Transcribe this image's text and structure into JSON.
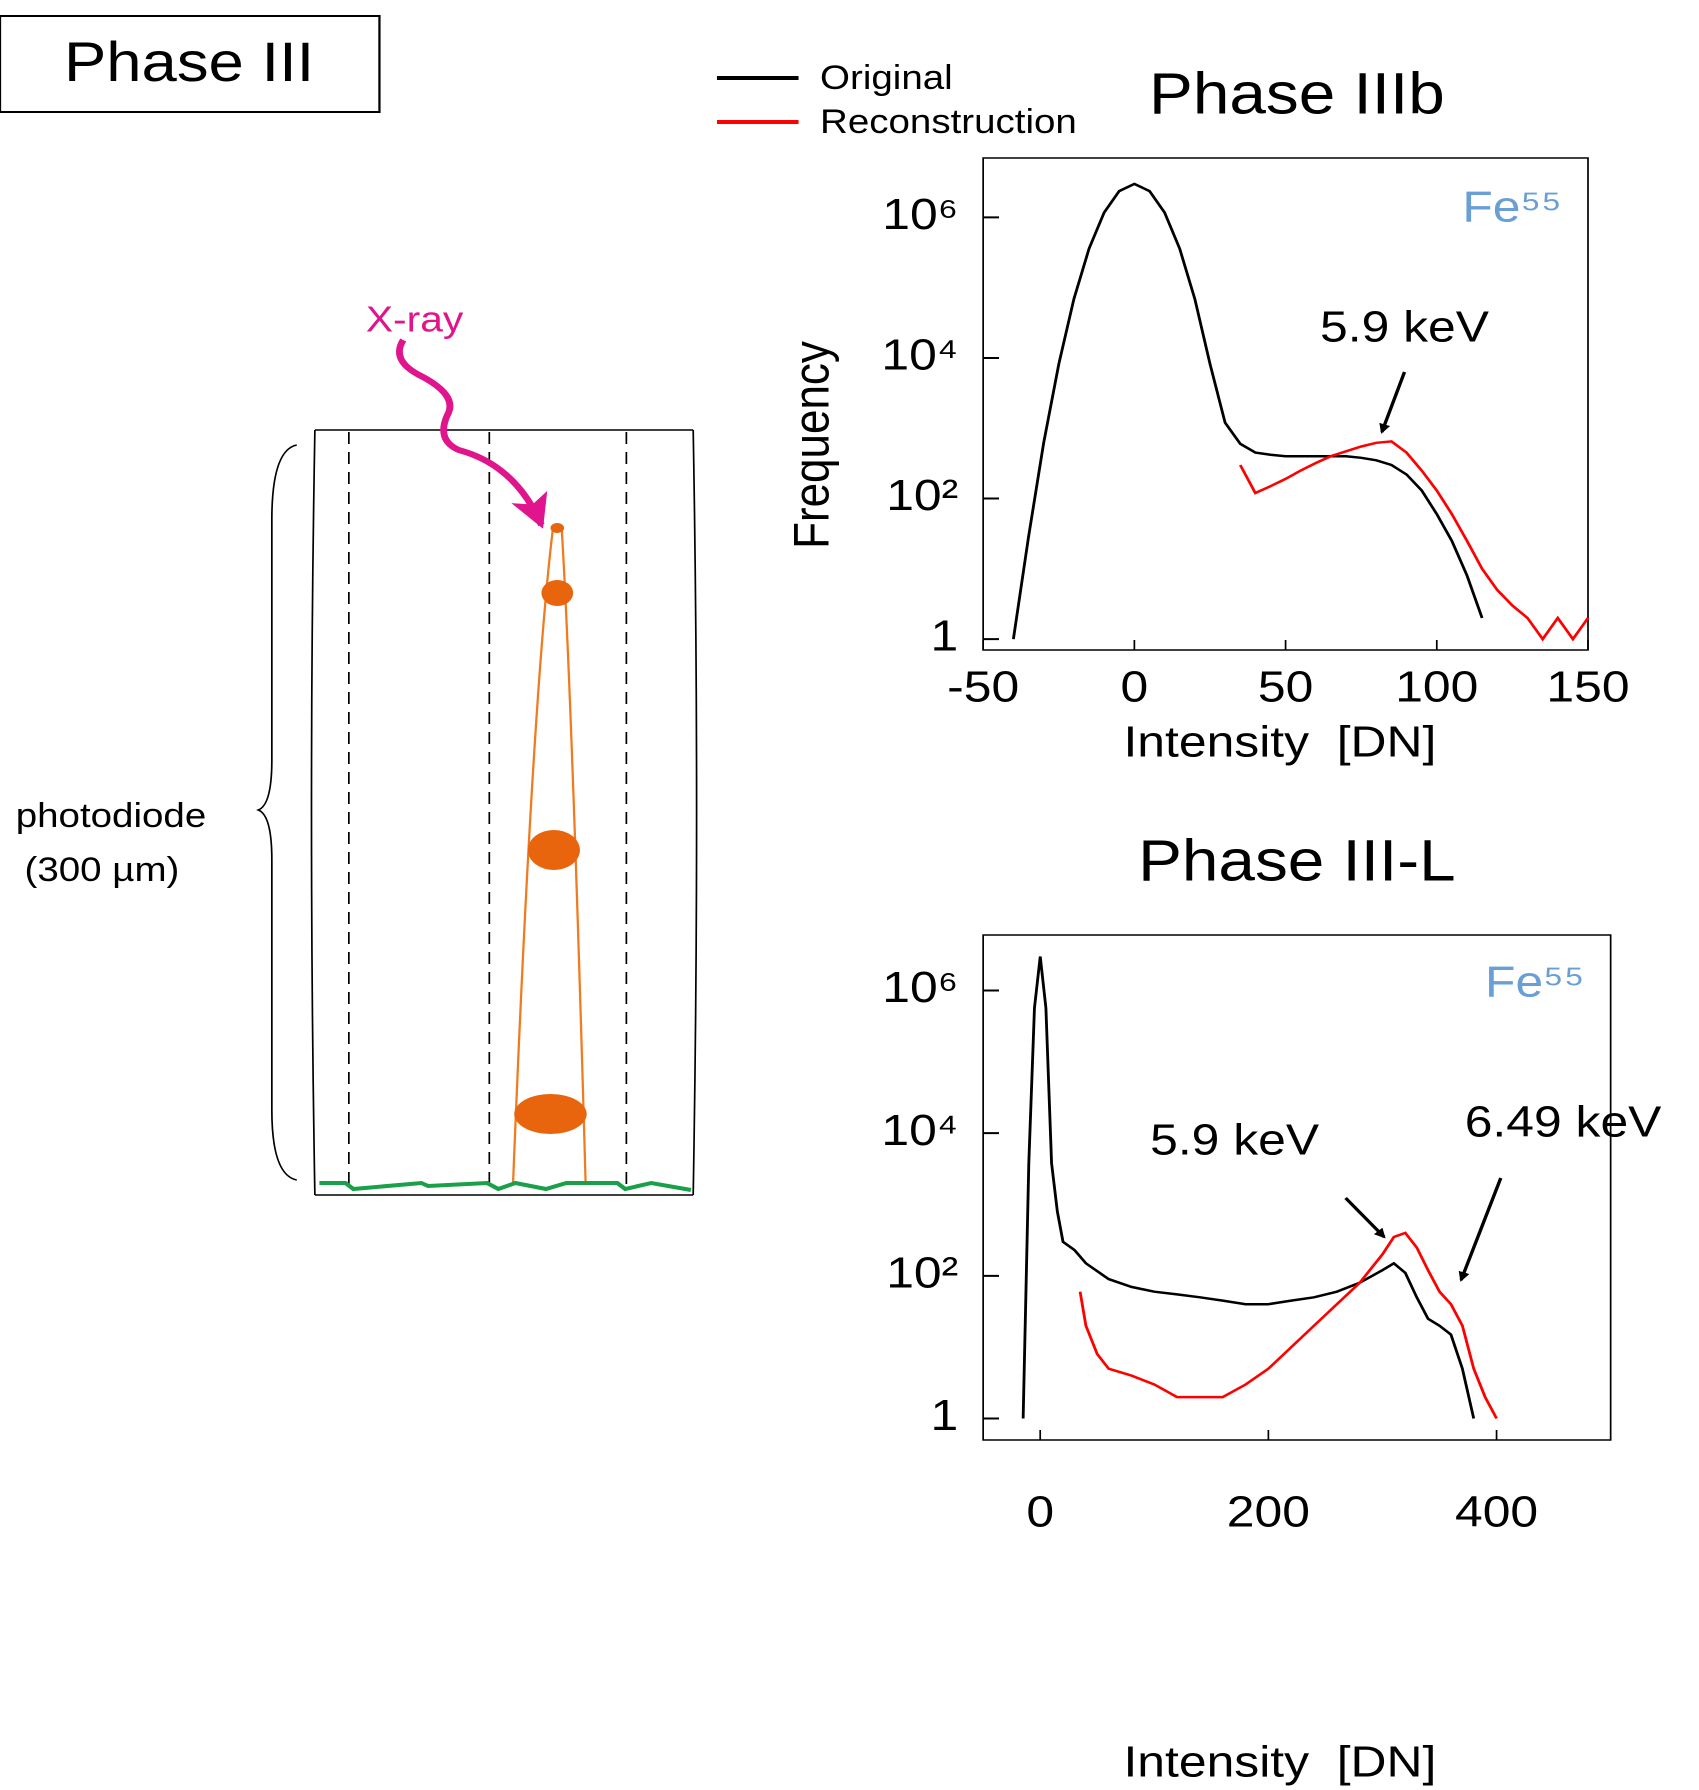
{
  "diagram": {
    "title": "Phase III",
    "xray": "X-ray",
    "label": [
      "photodiode",
      "(300 µm)"
    ]
  },
  "chart_data": [
    {
      "type": "line",
      "title": "Phase IIIb",
      "x_label": "Intensity  [DN]",
      "y_label": "Frequency",
      "log_y": true,
      "xlim": [
        -50,
        150
      ],
      "xticks": [
        -50,
        0,
        50,
        100,
        150
      ],
      "ylim": [
        0.7,
        7000000
      ],
      "yticks": [
        1,
        {
          "value": 100,
          "label": "10²"
        },
        {
          "value": 10000,
          "label": "10⁴"
        },
        {
          "value": 1000000,
          "label": "10⁶"
        }
      ],
      "annotations": [
        {
          "text": "Fe⁵⁵",
          "color": "#6a9fd6"
        },
        {
          "text": "5.9 keV",
          "color": "#000000"
        }
      ],
      "series": [
        {
          "name": "Original",
          "color": "#000000",
          "x": [
            -40,
            -35,
            -30,
            -25,
            -20,
            -15,
            -10,
            -5,
            0,
            5,
            10,
            15,
            20,
            25,
            30,
            35,
            40,
            45,
            50,
            55,
            60,
            65,
            70,
            75,
            80,
            85,
            90,
            95,
            100,
            105,
            110,
            115
          ],
          "values": [
            1,
            28,
            615,
            8200,
            69000,
            360000,
            1170000,
            2370000,
            3000000,
            2370000,
            1170000,
            360000,
            69000,
            8200,
            1200,
            600,
            450,
            420,
            400,
            400,
            400,
            400,
            400,
            380,
            350,
            300,
            220,
            130,
            60,
            25,
            8,
            2
          ]
        },
        {
          "name": "Reconstruction",
          "color": "#ff0000",
          "x": [
            35,
            40,
            45,
            50,
            55,
            60,
            65,
            70,
            75,
            80,
            85,
            90,
            95,
            100,
            105,
            110,
            115,
            120,
            125,
            130,
            135,
            140,
            145,
            150
          ],
          "values": [
            300,
            120,
            150,
            190,
            250,
            320,
            400,
            470,
            550,
            620,
            650,
            450,
            250,
            130,
            60,
            25,
            10,
            5,
            3,
            2,
            1,
            2,
            1,
            2
          ]
        }
      ]
    },
    {
      "type": "line",
      "title": "Phase III-L",
      "x_label": "Intensity  [DN]",
      "log_y": true,
      "xlim": [
        -50,
        500
      ],
      "xticks": [
        0,
        200,
        400
      ],
      "ylim": [
        0.5,
        6000000
      ],
      "yticks": [
        1,
        {
          "value": 100,
          "label": "10²"
        },
        {
          "value": 10000,
          "label": "10⁴"
        },
        {
          "value": 1000000,
          "label": "10⁶"
        }
      ],
      "annotations": [
        {
          "text": "Fe⁵⁵",
          "color": "#6a9fd6"
        },
        {
          "text": "5.9 keV",
          "color": "#000000"
        },
        {
          "text": "6.49 keV",
          "color": "#000000"
        }
      ],
      "series": [
        {
          "color": "#000000",
          "x": [
            -15,
            -10,
            -5,
            0,
            5,
            10,
            15,
            20,
            30,
            40,
            60,
            80,
            100,
            120,
            140,
            160,
            180,
            200,
            220,
            240,
            260,
            280,
            300,
            310,
            320,
            330,
            340,
            350,
            360,
            370,
            380
          ],
          "values": [
            1,
            3800,
            570000,
            3000000,
            570000,
            3800,
            800,
            300,
            230,
            150,
            90,
            70,
            60,
            55,
            50,
            45,
            40,
            40,
            45,
            50,
            60,
            80,
            120,
            150,
            110,
            50,
            25,
            20,
            15,
            5,
            1
          ]
        },
        {
          "color": "#ff0000",
          "x": [
            35,
            40,
            50,
            60,
            80,
            100,
            120,
            140,
            160,
            180,
            200,
            220,
            240,
            260,
            280,
            300,
            310,
            320,
            330,
            340,
            350,
            360,
            370,
            380,
            390,
            400
          ],
          "values": [
            60,
            20,
            8,
            5,
            4,
            3,
            2,
            2,
            2,
            3,
            5,
            10,
            20,
            40,
            80,
            200,
            350,
            400,
            250,
            120,
            60,
            40,
            20,
            5,
            2,
            1
          ]
        }
      ]
    }
  ]
}
